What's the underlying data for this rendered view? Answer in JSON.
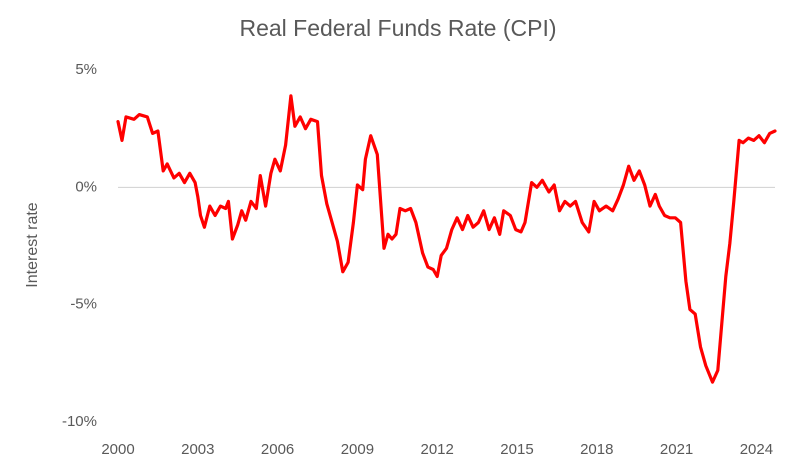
{
  "chart_data": {
    "type": "line",
    "title": "Real Federal Funds Rate (CPI)",
    "y_label": "Interest rate",
    "color": "#ff0000",
    "x": [
      2000.0,
      2000.15,
      2000.3,
      2000.6,
      2000.8,
      2001.1,
      2001.3,
      2001.5,
      2001.7,
      2001.85,
      2002.1,
      2002.3,
      2002.5,
      2002.7,
      2002.9,
      2003.0,
      2003.1,
      2003.25,
      2003.45,
      2003.65,
      2003.85,
      2004.05,
      2004.15,
      2004.3,
      2004.5,
      2004.65,
      2004.8,
      2005.0,
      2005.2,
      2005.35,
      2005.55,
      2005.75,
      2005.9,
      2006.1,
      2006.3,
      2006.5,
      2006.65,
      2006.85,
      2007.05,
      2007.25,
      2007.5,
      2007.65,
      2007.85,
      2008.05,
      2008.25,
      2008.45,
      2008.65,
      2008.85,
      2009.0,
      2009.2,
      2009.3,
      2009.5,
      2009.75,
      2009.9,
      2010.0,
      2010.15,
      2010.3,
      2010.45,
      2010.6,
      2010.8,
      2011.0,
      2011.2,
      2011.45,
      2011.65,
      2011.85,
      2012.0,
      2012.15,
      2012.35,
      2012.55,
      2012.75,
      2012.95,
      2013.15,
      2013.35,
      2013.55,
      2013.75,
      2013.95,
      2014.15,
      2014.35,
      2014.5,
      2014.75,
      2014.95,
      2015.15,
      2015.3,
      2015.55,
      2015.75,
      2015.95,
      2016.2,
      2016.4,
      2016.6,
      2016.8,
      2017.0,
      2017.2,
      2017.45,
      2017.7,
      2017.9,
      2018.1,
      2018.35,
      2018.6,
      2018.8,
      2019.0,
      2019.2,
      2019.4,
      2019.6,
      2019.8,
      2020.0,
      2020.2,
      2020.35,
      2020.55,
      2020.75,
      2020.95,
      2021.15,
      2021.35,
      2021.5,
      2021.7,
      2021.9,
      2022.1,
      2022.35,
      2022.55,
      2022.7,
      2022.85,
      2023.0,
      2023.15,
      2023.35,
      2023.5,
      2023.7,
      2023.9,
      2024.1,
      2024.3,
      2024.5,
      2024.7
    ],
    "values": [
      2.8,
      2.0,
      3.0,
      2.9,
      3.1,
      3.0,
      2.3,
      2.4,
      0.7,
      1.0,
      0.4,
      0.6,
      0.2,
      0.6,
      0.2,
      -0.4,
      -1.2,
      -1.7,
      -0.8,
      -1.2,
      -0.8,
      -0.9,
      -0.6,
      -2.2,
      -1.6,
      -1.0,
      -1.4,
      -0.6,
      -0.9,
      0.5,
      -0.8,
      0.6,
      1.2,
      0.7,
      1.8,
      3.9,
      2.6,
      3.0,
      2.5,
      2.9,
      2.8,
      0.5,
      -0.7,
      -1.5,
      -2.3,
      -3.6,
      -3.2,
      -1.5,
      0.1,
      -0.1,
      1.2,
      2.2,
      1.4,
      -1.0,
      -2.6,
      -2.0,
      -2.2,
      -2.0,
      -0.9,
      -1.0,
      -0.9,
      -1.5,
      -2.8,
      -3.4,
      -3.5,
      -3.8,
      -2.9,
      -2.6,
      -1.8,
      -1.3,
      -1.8,
      -1.2,
      -1.7,
      -1.5,
      -1.0,
      -1.8,
      -1.3,
      -2.0,
      -1.0,
      -1.2,
      -1.8,
      -1.9,
      -1.5,
      0.2,
      0.0,
      0.3,
      -0.2,
      0.1,
      -1.0,
      -0.6,
      -0.8,
      -0.6,
      -1.5,
      -1.9,
      -0.6,
      -1.0,
      -0.8,
      -1.0,
      -0.5,
      0.1,
      0.9,
      0.3,
      0.7,
      0.1,
      -0.8,
      -0.3,
      -0.8,
      -1.2,
      -1.3,
      -1.3,
      -1.5,
      -4.0,
      -5.2,
      -5.4,
      -6.8,
      -7.6,
      -8.3,
      -7.8,
      -5.8,
      -3.8,
      -2.4,
      -0.6,
      2.0,
      1.9,
      2.1,
      2.0,
      2.2,
      1.9,
      2.3,
      2.4
    ],
    "xlim": [
      2000,
      2024.7
    ],
    "xticks": [
      2000,
      2003,
      2006,
      2009,
      2012,
      2015,
      2018,
      2021,
      2024
    ],
    "ylim": [
      -10,
      5
    ],
    "yticks": [
      {
        "value": 5,
        "label": "5%"
      },
      {
        "value": 0,
        "label": "0%"
      },
      {
        "value": -5,
        "label": "-5%"
      },
      {
        "value": -10,
        "label": "-10%"
      }
    ],
    "grid": false
  }
}
